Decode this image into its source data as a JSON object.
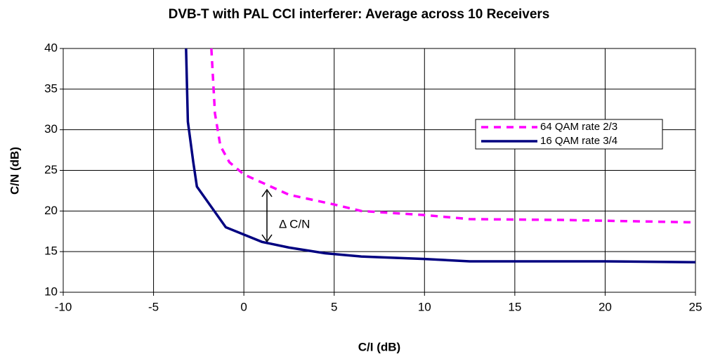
{
  "chart_data": {
    "type": "line",
    "title": "DVB-T with PAL CCI interferer: Average across 10 Receivers",
    "x_label": "C/I (dB)",
    "y_label": "C/N (dB)",
    "annotation": "Δ C/N",
    "xlim": [
      -10,
      25
    ],
    "xticks": [
      -10,
      -5,
      0,
      5,
      10,
      15,
      20,
      25
    ],
    "ylim": [
      10,
      40
    ],
    "yticks": [
      10,
      15,
      20,
      25,
      30,
      35,
      40
    ],
    "grid": true,
    "legend": "right",
    "series": [
      {
        "name": "64 QAM rate 2/3",
        "color": "#ff00ff",
        "dash": true,
        "x": [
          -1.8,
          -1.6,
          -1.3,
          -0.8,
          0,
          1.2,
          2.5,
          5,
          6.5,
          10,
          12.5,
          17.5,
          20,
          25
        ],
        "values": [
          40,
          32,
          28,
          26,
          24.5,
          23.3,
          22,
          20.8,
          20,
          19.5,
          19,
          18.9,
          18.8,
          18.6
        ]
      },
      {
        "name": "16 QAM rate 3/4",
        "color": "#000080",
        "dash": false,
        "x": [
          -3.2,
          -3.1,
          -2.8,
          -2.6,
          -1,
          1,
          2.5,
          4.5,
          6.5,
          10,
          12.5,
          20,
          25
        ],
        "values": [
          40,
          31,
          26,
          23,
          18,
          16.2,
          15.5,
          14.8,
          14.4,
          14.1,
          13.8,
          13.8,
          13.7
        ]
      }
    ]
  }
}
